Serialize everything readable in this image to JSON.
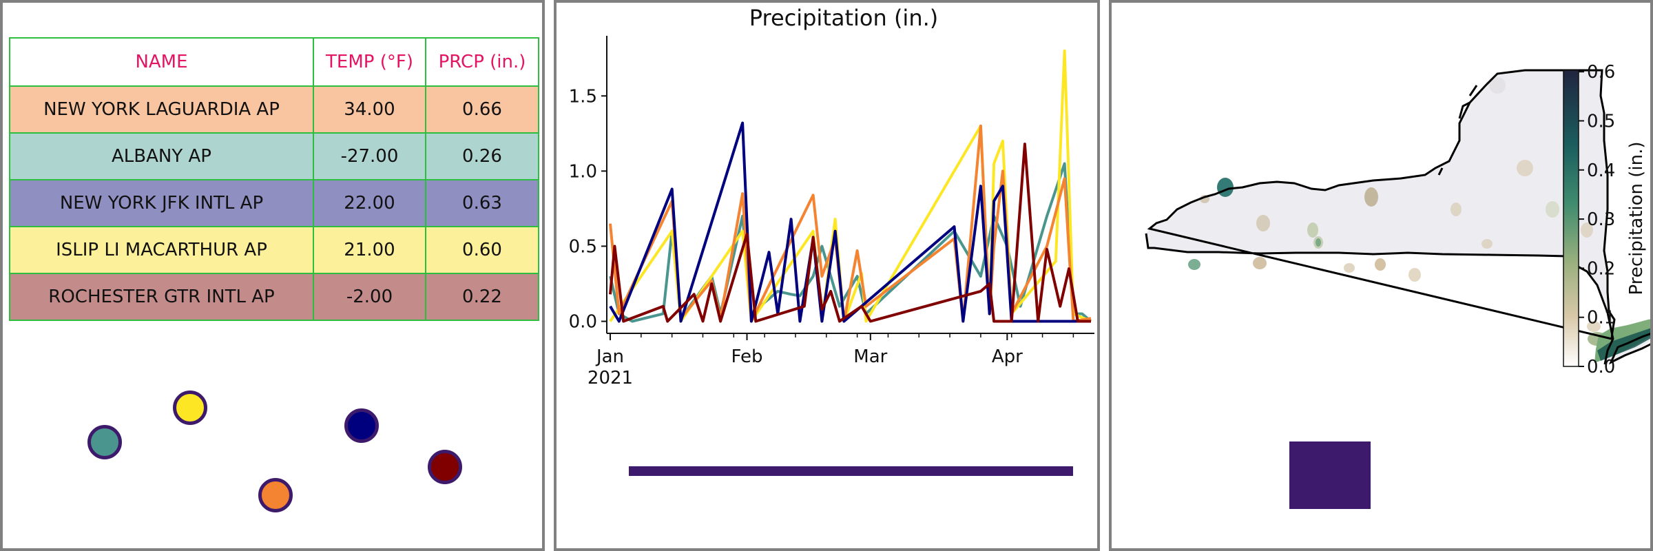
{
  "table": {
    "headers": [
      "NAME",
      "TEMP (°F)",
      "PRCP (in.)"
    ],
    "header_color": "#e31463",
    "border_color": "#2dbd3f",
    "rows": [
      {
        "name": "NEW YORK LAGUARDIA AP",
        "temp": "34.00",
        "prcp": "0.66",
        "color": "#f9c4a0"
      },
      {
        "name": "ALBANY AP",
        "temp": "-27.00",
        "prcp": "0.26",
        "color": "#aed4cf"
      },
      {
        "name": "NEW YORK JFK INTL AP",
        "temp": "22.00",
        "prcp": "0.63",
        "color": "#8f8fc2"
      },
      {
        "name": "ISLIP LI MACARTHUR AP",
        "temp": "21.00",
        "prcp": "0.60",
        "color": "#fdf09a"
      },
      {
        "name": "ROCHESTER GTR INTL AP",
        "temp": "-2.00",
        "prcp": "0.22",
        "color": "#c48b8b"
      }
    ]
  },
  "legend_dots": [
    {
      "color": "#4a968f"
    },
    {
      "color": "#fde724"
    },
    {
      "color": "#f48431"
    },
    {
      "color": "#00007f"
    },
    {
      "color": "#800000"
    }
  ],
  "chart_data": {
    "type": "line",
    "title": "Precipitation (in.)",
    "xlabel": "",
    "ylabel": "",
    "x_ticks": [
      "Jan",
      "Feb",
      "Mar",
      "Apr"
    ],
    "x_tick_year": "2021",
    "y_ticks": [
      "0.0",
      "0.5",
      "1.0",
      "1.5"
    ],
    "ylim": [
      -0.08,
      1.9
    ],
    "x_range": [
      "2021-01-01",
      "2021-04-20"
    ],
    "series": [
      {
        "color": "#4a968f",
        "points": [
          [
            "2021-01-01",
            0.3
          ],
          [
            "2021-01-03",
            0.05
          ],
          [
            "2021-01-06",
            0.0
          ],
          [
            "2021-01-13",
            0.05
          ],
          [
            "2021-01-15",
            0.6
          ],
          [
            "2021-01-17",
            0.02
          ],
          [
            "2021-01-24",
            0.3
          ],
          [
            "2021-01-26",
            0.05
          ],
          [
            "2021-01-31",
            0.7
          ],
          [
            "2021-02-02",
            0.05
          ],
          [
            "2021-02-08",
            0.2
          ],
          [
            "2021-02-11",
            0.18
          ],
          [
            "2021-02-13",
            0.17
          ],
          [
            "2021-02-16",
            0.3
          ],
          [
            "2021-02-18",
            0.5
          ],
          [
            "2021-02-22",
            0.1
          ],
          [
            "2021-02-26",
            0.3
          ],
          [
            "2021-02-28",
            0.05
          ],
          [
            "2021-03-20",
            0.6
          ],
          [
            "2021-03-26",
            0.3
          ],
          [
            "2021-03-29",
            0.7
          ],
          [
            "2021-04-01",
            0.5
          ],
          [
            "2021-04-04",
            0.1
          ],
          [
            "2021-04-10",
            0.7
          ],
          [
            "2021-04-14",
            1.05
          ],
          [
            "2021-04-16",
            0.05
          ],
          [
            "2021-04-18",
            0.05
          ],
          [
            "2021-04-20",
            0.0
          ]
        ]
      },
      {
        "color": "#fde724",
        "points": [
          [
            "2021-01-01",
            0.0
          ],
          [
            "2021-01-15",
            0.6
          ],
          [
            "2021-01-17",
            0.0
          ],
          [
            "2021-01-31",
            0.6
          ],
          [
            "2021-02-02",
            0.0
          ],
          [
            "2021-02-16",
            0.6
          ],
          [
            "2021-02-18",
            0.0
          ],
          [
            "2021-02-21",
            0.68
          ],
          [
            "2021-02-23",
            0.0
          ],
          [
            "2021-02-27",
            0.32
          ],
          [
            "2021-02-28",
            0.0
          ],
          [
            "2021-03-26",
            1.3
          ],
          [
            "2021-03-28",
            0.05
          ],
          [
            "2021-03-29",
            1.05
          ],
          [
            "2021-03-31",
            1.2
          ],
          [
            "2021-04-02",
            0.05
          ],
          [
            "2021-04-12",
            0.4
          ],
          [
            "2021-04-14",
            1.8
          ],
          [
            "2021-04-16",
            0.05
          ],
          [
            "2021-04-20",
            0.0
          ]
        ]
      },
      {
        "color": "#f48431",
        "points": [
          [
            "2021-01-01",
            0.65
          ],
          [
            "2021-01-03",
            0.05
          ],
          [
            "2021-01-15",
            0.8
          ],
          [
            "2021-01-17",
            0.02
          ],
          [
            "2021-01-24",
            0.27
          ],
          [
            "2021-01-26",
            0.02
          ],
          [
            "2021-01-31",
            0.85
          ],
          [
            "2021-02-02",
            0.0
          ],
          [
            "2021-02-16",
            0.84
          ],
          [
            "2021-02-18",
            0.3
          ],
          [
            "2021-02-21",
            0.55
          ],
          [
            "2021-02-23",
            0.0
          ],
          [
            "2021-02-26",
            0.47
          ],
          [
            "2021-02-28",
            0.1
          ],
          [
            "2021-03-20",
            0.55
          ],
          [
            "2021-03-22",
            0.0
          ],
          [
            "2021-03-26",
            1.3
          ],
          [
            "2021-03-28",
            0.05
          ],
          [
            "2021-03-29",
            0.5
          ],
          [
            "2021-03-31",
            1.0
          ],
          [
            "2021-04-02",
            0.05
          ],
          [
            "2021-04-10",
            0.5
          ],
          [
            "2021-04-14",
            0.95
          ],
          [
            "2021-04-16",
            0.0
          ],
          [
            "2021-04-20",
            0.02
          ]
        ]
      },
      {
        "color": "#00007f",
        "points": [
          [
            "2021-01-01",
            0.1
          ],
          [
            "2021-01-03",
            0.0
          ],
          [
            "2021-01-15",
            0.88
          ],
          [
            "2021-01-17",
            0.0
          ],
          [
            "2021-01-31",
            1.32
          ],
          [
            "2021-02-02",
            0.0
          ],
          [
            "2021-02-06",
            0.46
          ],
          [
            "2021-02-08",
            0.05
          ],
          [
            "2021-02-11",
            0.68
          ],
          [
            "2021-02-13",
            0.0
          ],
          [
            "2021-02-16",
            0.55
          ],
          [
            "2021-02-18",
            0.0
          ],
          [
            "2021-02-21",
            0.6
          ],
          [
            "2021-02-23",
            0.0
          ],
          [
            "2021-03-20",
            0.63
          ],
          [
            "2021-03-22",
            0.0
          ],
          [
            "2021-03-26",
            0.9
          ],
          [
            "2021-03-28",
            0.05
          ],
          [
            "2021-03-29",
            0.8
          ],
          [
            "2021-03-31",
            0.9
          ],
          [
            "2021-04-02",
            0.0
          ],
          [
            "2021-04-20",
            0.0
          ]
        ]
      },
      {
        "color": "#800000",
        "points": [
          [
            "2021-01-01",
            0.18
          ],
          [
            "2021-01-02",
            0.5
          ],
          [
            "2021-01-04",
            0.0
          ],
          [
            "2021-01-13",
            0.1
          ],
          [
            "2021-01-14",
            0.0
          ],
          [
            "2021-01-20",
            0.18
          ],
          [
            "2021-01-22",
            0.0
          ],
          [
            "2021-01-24",
            0.25
          ],
          [
            "2021-01-26",
            0.0
          ],
          [
            "2021-02-01",
            0.58
          ],
          [
            "2021-02-03",
            0.0
          ],
          [
            "2021-02-14",
            0.1
          ],
          [
            "2021-02-16",
            0.56
          ],
          [
            "2021-02-18",
            0.08
          ],
          [
            "2021-02-20",
            0.2
          ],
          [
            "2021-02-22",
            0.0
          ],
          [
            "2021-02-27",
            0.1
          ],
          [
            "2021-03-01",
            0.0
          ],
          [
            "2021-03-26",
            0.2
          ],
          [
            "2021-03-28",
            0.25
          ],
          [
            "2021-03-29",
            0.0
          ],
          [
            "2021-04-02",
            0.0
          ],
          [
            "2021-04-05",
            1.18
          ],
          [
            "2021-04-08",
            0.0
          ],
          [
            "2021-04-10",
            0.48
          ],
          [
            "2021-04-13",
            0.1
          ],
          [
            "2021-04-15",
            0.35
          ],
          [
            "2021-04-17",
            0.0
          ],
          [
            "2021-04-20",
            0.0
          ]
        ]
      }
    ]
  },
  "map": {
    "colorbar_label": "Precipitation (in.)",
    "colorbar_ticks": [
      "0.0",
      "0.1",
      "0.2",
      "0.3",
      "0.4",
      "0.5",
      "0.6"
    ]
  },
  "swatches": {
    "bar_color": "#3d1a6c",
    "square_color": "#3d1a6c"
  }
}
